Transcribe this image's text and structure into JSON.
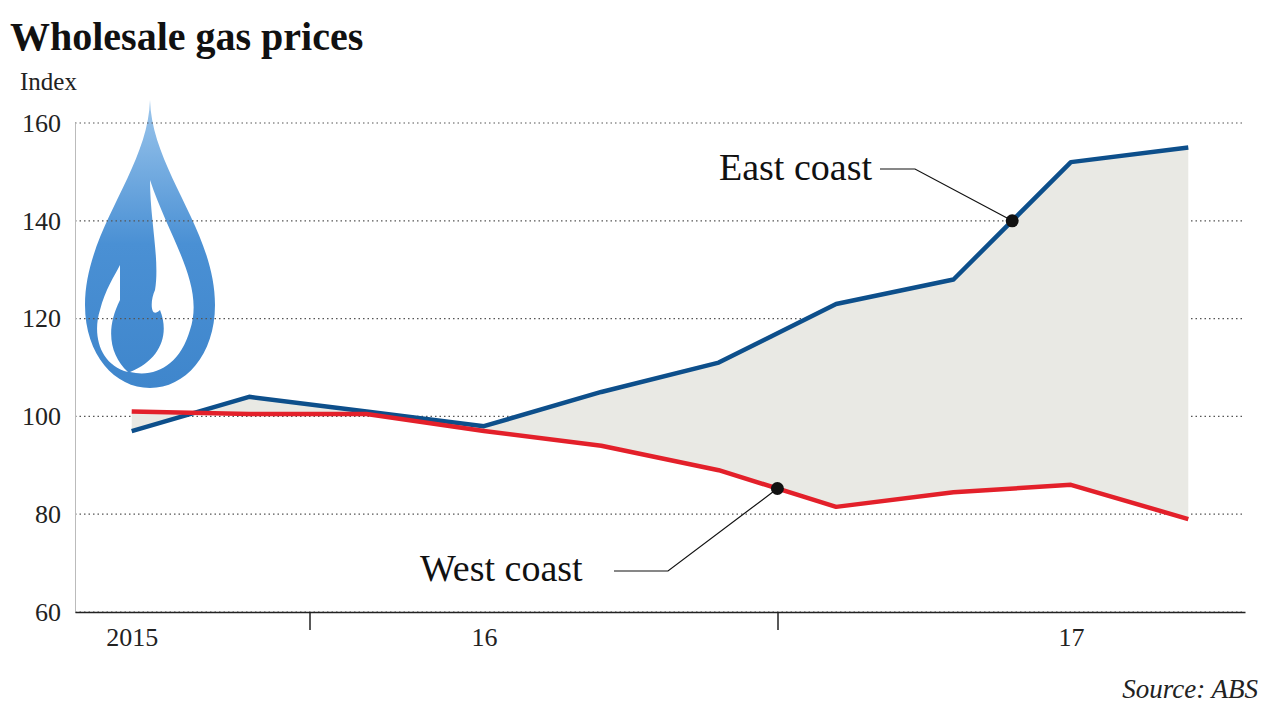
{
  "chart_data": {
    "type": "line",
    "title": "Wholesale gas prices",
    "y_label": "Index",
    "source": "Source: ABS",
    "categories": [
      "2015",
      null,
      null,
      "16",
      null,
      null,
      null,
      null,
      "17",
      null
    ],
    "series": [
      {
        "name": "East coast",
        "color": "#0d4f8b",
        "values": [
          97,
          104,
          101,
          98,
          105,
          111,
          123,
          128,
          152,
          155
        ]
      },
      {
        "name": "West coast",
        "color": "#e3202a",
        "values": [
          101,
          100.5,
          100.5,
          97,
          94,
          89,
          81.5,
          84.5,
          86,
          79
        ]
      }
    ],
    "ylim": [
      60,
      160
    ],
    "yticks": [
      60,
      80,
      100,
      120,
      140,
      160
    ],
    "grid": true
  }
}
